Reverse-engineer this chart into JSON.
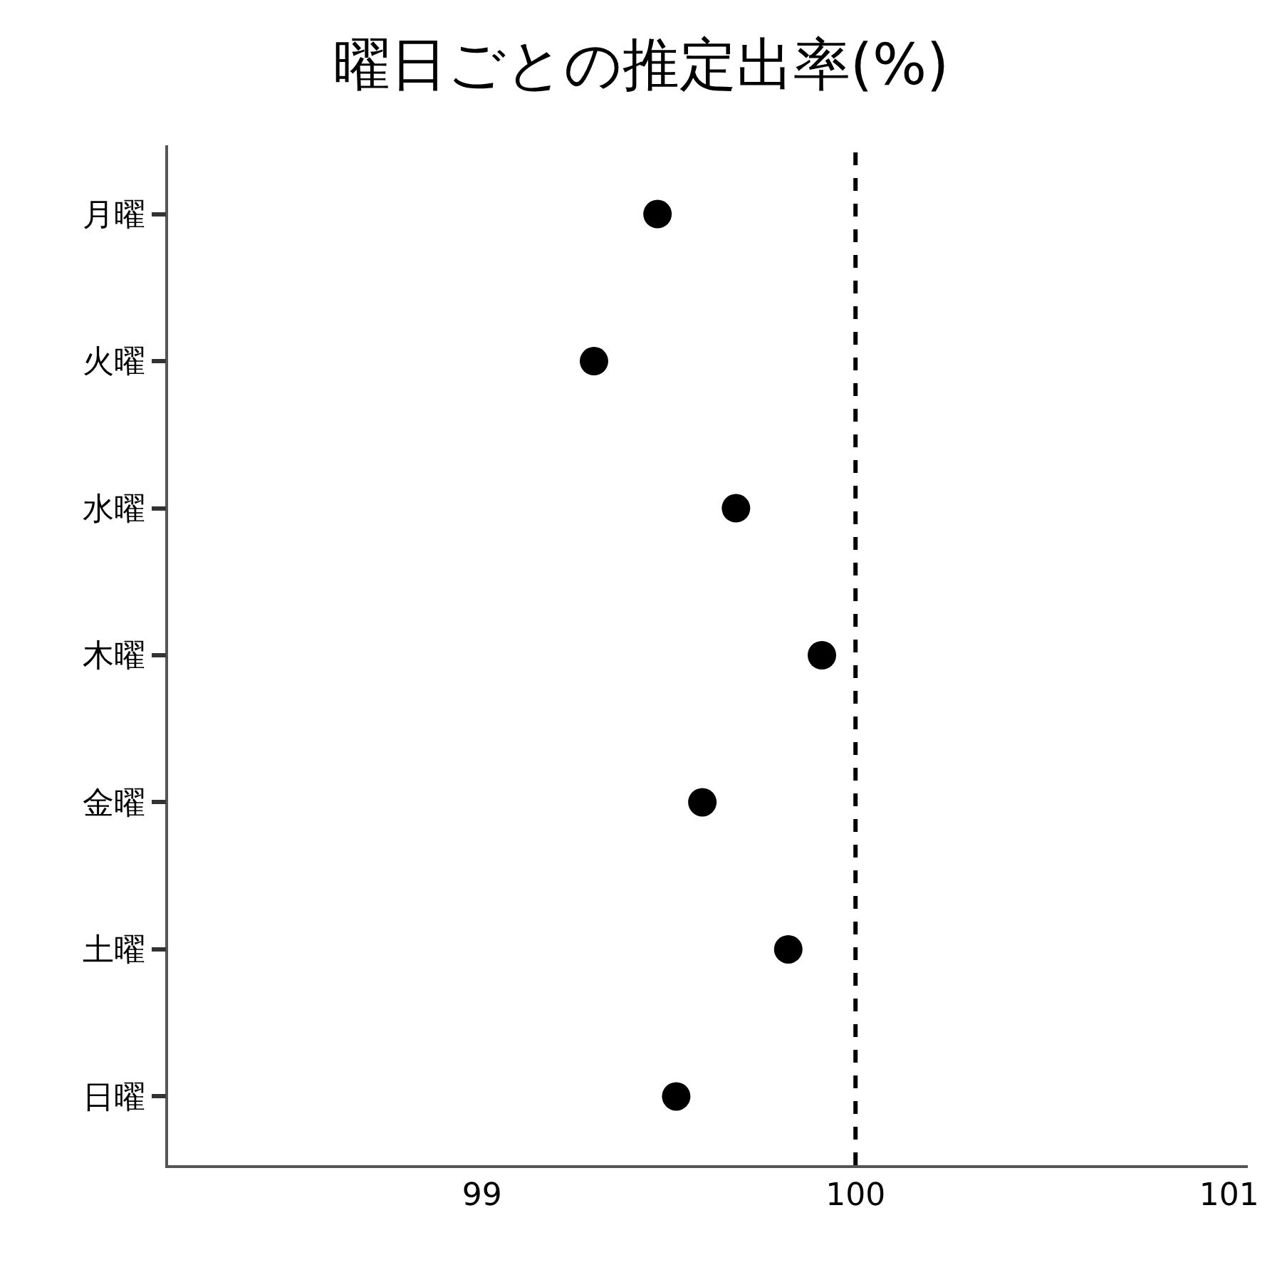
{
  "chart_data": {
    "type": "scatter",
    "title": "曜日ごとの推定出率(%)",
    "orientation": "horizontal",
    "categories": [
      "月曜",
      "火曜",
      "水曜",
      "木曜",
      "金曜",
      "土曜",
      "日曜"
    ],
    "values": [
      99.47,
      99.3,
      99.68,
      99.91,
      99.59,
      99.82,
      99.52
    ],
    "color": "#000000",
    "marker": "circle",
    "xlim": [
      98.16,
      101.05
    ],
    "xticks": [
      99,
      100,
      101
    ],
    "ref_lines": [
      {
        "axis": "x",
        "value": 100,
        "color": "#000000",
        "line_style": "dashed"
      }
    ]
  }
}
